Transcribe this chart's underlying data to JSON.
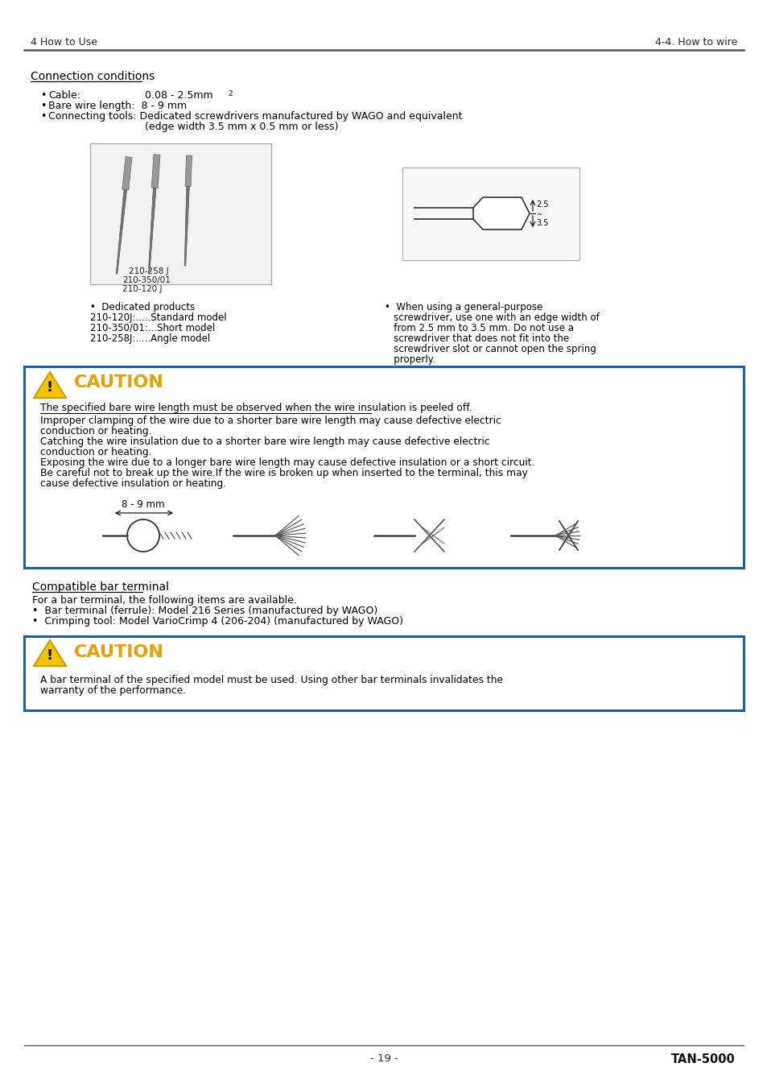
{
  "page_bg": "#ffffff",
  "header_left": "4 How to Use",
  "header_right": "4-4. How to wire",
  "header_line_color": "#555555",
  "footer_center": "- 19 -",
  "footer_right": "TAN-5000",
  "footer_line_color": "#555555",
  "section_title": "Connection conditions",
  "cable_label": "Cable:",
  "cable_value": "0.08 - 2.5mm",
  "cable_sup": "2",
  "bare_wire": "Bare wire length:  8 - 9 mm",
  "conn_tools1": "Connecting tools: Dedicated screwdrivers manufactured by WAGO and equivalent",
  "conn_tools2": "             (edge width 3.5 mm x 0.5 mm or less)",
  "left_img_label1": "210-258 J",
  "left_img_label2": "210-350/01",
  "left_img_label3": "210-120 J",
  "left_cap1": "•  Dedicated products",
  "left_cap2": "210-120J:.....Standard model",
  "left_cap3": "210-350/01:...Short model",
  "left_cap4": "210-258J:.....Angle model",
  "right_dim1": "2.5",
  "right_dim2": "3.5",
  "right_cap1": "•  When using a general-purpose",
  "right_cap2": "   screwdriver, use one with an edge width of",
  "right_cap3": "   from 2.5 mm to 3.5 mm. Do not use a",
  "right_cap4": "   screwdriver that does not fit into the",
  "right_cap5": "   screwdriver slot or cannot open the spring",
  "right_cap6": "   properly.",
  "caution1_title": "CAUTION",
  "caution1_underline": "The specified bare wire length must be observed when the wire insulation is peeled off.",
  "caution1_line1": "Improper clamping of the wire due to a shorter bare wire length may cause defective electric",
  "caution1_line2": "conduction or heating.",
  "caution1_line3": "Catching the wire insulation due to a shorter bare wire length may cause defective electric",
  "caution1_line4": "conduction or heating.",
  "caution1_line5": "Exposing the wire due to a longer bare wire length may cause defective insulation or a short circuit.",
  "caution1_line6": "Be careful not to break up the wire.If the wire is broken up when inserted to the terminal, this may",
  "caution1_line7": "cause defective insulation or heating.",
  "wire_label": "8 - 9 mm",
  "compat_title": "Compatible bar terminal",
  "compat_line0": "For a bar terminal, the following items are available.",
  "compat_line1": "•  Bar terminal (ferrule): Model 216 Series (manufactured by WAGO)",
  "compat_line2": "•  Crimping tool: Model VarioCrimp 4 (206-204) (manufactured by WAGO)",
  "caution2_title": "CAUTION",
  "caution2_line1": "A bar terminal of the specified model must be used. Using other bar terminals invalidates the",
  "caution2_line2": "warranty of the performance.",
  "caution_border": "#1a5faa",
  "caution_title_color": "#e8a000",
  "triangle_fill": "#f5c300",
  "triangle_edge": "#c8a000"
}
